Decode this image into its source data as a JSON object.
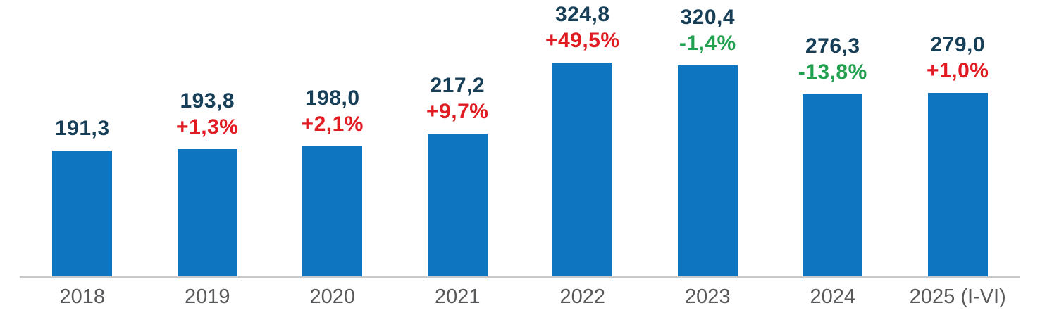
{
  "chart_data": {
    "type": "bar",
    "title": "",
    "xlabel": "",
    "ylabel": "",
    "grid": false,
    "legend": false,
    "ylim": [
      0,
      420
    ],
    "categories": [
      "2018",
      "2019",
      "2020",
      "2021",
      "2022",
      "2023",
      "2024",
      "2025 (I-VI)"
    ],
    "values": [
      191.3,
      193.8,
      198.0,
      217.2,
      324.8,
      320.4,
      276.3,
      279.0
    ],
    "value_labels": [
      "191,3",
      "193,8",
      "198,0",
      "217,2",
      "324,8",
      "320,4",
      "276,3",
      "279,0"
    ],
    "change_labels": [
      "",
      "+1,3%",
      "+2,1%",
      "+9,7%",
      "+49,5%",
      "-1,4%",
      "-13,8%",
      "+1,0%"
    ],
    "change_directions": [
      "none",
      "up",
      "up",
      "up",
      "up",
      "down",
      "down",
      "up"
    ],
    "colors": {
      "bar": "#0e76c0",
      "value_label": "#163e56",
      "increase": "#e01b22",
      "decrease": "#21a14f",
      "axis_line": "#c9c9c9",
      "tick_label": "#58595b"
    }
  }
}
